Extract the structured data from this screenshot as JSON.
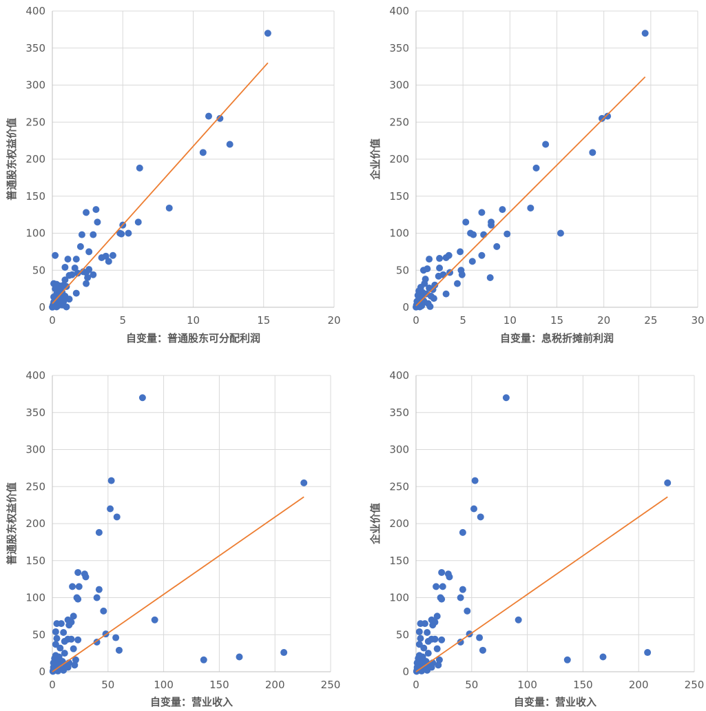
{
  "colors": {
    "points": "#4472C4",
    "trendline": "#ED7D31",
    "grid": "#D9D9D9",
    "text": "#595959"
  },
  "chart_data": [
    {
      "type": "scatter",
      "xlabel": "自变量：普通股东可分配利润",
      "ylabel": "普通股东权益价值",
      "xlim": [
        0,
        20
      ],
      "ylim": [
        0,
        400
      ],
      "xticks": [
        0,
        5,
        10,
        15,
        20
      ],
      "yticks": [
        0,
        50,
        100,
        150,
        200,
        250,
        300,
        350,
        400
      ],
      "grid": true,
      "trendline": {
        "x": [
          0,
          15.3
        ],
        "y": [
          5,
          330
        ]
      },
      "points": [
        [
          15.3,
          370
        ],
        [
          11.1,
          258
        ],
        [
          11.9,
          255
        ],
        [
          12.6,
          220
        ],
        [
          10.7,
          209
        ],
        [
          6.2,
          188
        ],
        [
          8.3,
          134
        ],
        [
          3.1,
          132
        ],
        [
          2.4,
          128
        ],
        [
          3.2,
          115
        ],
        [
          6.1,
          115
        ],
        [
          5.0,
          111
        ],
        [
          4.8,
          100
        ],
        [
          5.4,
          100
        ],
        [
          4.9,
          99
        ],
        [
          2.9,
          98
        ],
        [
          2.1,
          98
        ],
        [
          2.0,
          82
        ],
        [
          2.6,
          75
        ],
        [
          0.2,
          70
        ],
        [
          4.3,
          70
        ],
        [
          3.5,
          67
        ],
        [
          3.8,
          69
        ],
        [
          4.0,
          62
        ],
        [
          1.1,
          65
        ],
        [
          1.7,
          65
        ],
        [
          0.9,
          54
        ],
        [
          1.6,
          53
        ],
        [
          2.6,
          51
        ],
        [
          2.2,
          48
        ],
        [
          2.4,
          47
        ],
        [
          1.8,
          46
        ],
        [
          1.4,
          44
        ],
        [
          1.2,
          43
        ],
        [
          2.9,
          44
        ],
        [
          2.5,
          40
        ],
        [
          2.4,
          32
        ],
        [
          0.9,
          37
        ],
        [
          0.8,
          30
        ],
        [
          1.0,
          28
        ],
        [
          0.1,
          32
        ],
        [
          0.3,
          31
        ],
        [
          0.5,
          29
        ],
        [
          0.6,
          26
        ],
        [
          0.2,
          25
        ],
        [
          0.4,
          22
        ],
        [
          0.7,
          20
        ],
        [
          1.7,
          19
        ],
        [
          0.3,
          18
        ],
        [
          0.6,
          16
        ],
        [
          0.9,
          15
        ],
        [
          0.1,
          14
        ],
        [
          0.5,
          12
        ],
        [
          1.2,
          11
        ],
        [
          0.2,
          10
        ],
        [
          0.4,
          9
        ],
        [
          0.8,
          8
        ],
        [
          0.1,
          7
        ],
        [
          0.3,
          6
        ],
        [
          0.6,
          5
        ],
        [
          0.2,
          4
        ],
        [
          0.05,
          3
        ],
        [
          0.4,
          2
        ],
        [
          0.1,
          1
        ],
        [
          0.3,
          0.5
        ],
        [
          0.0,
          0.2
        ],
        [
          1.0,
          0.5
        ],
        [
          0.7,
          3
        ],
        [
          0.5,
          7
        ]
      ]
    },
    {
      "type": "scatter",
      "xlabel": "自变量：息税折摊前利润",
      "ylabel": "企业价值",
      "xlim": [
        0,
        30
      ],
      "ylim": [
        0,
        400
      ],
      "xticks": [
        0,
        5,
        10,
        15,
        20,
        25,
        30
      ],
      "yticks": [
        0,
        50,
        100,
        150,
        200,
        250,
        300,
        350,
        400
      ],
      "grid": true,
      "trendline": {
        "x": [
          0,
          24.4
        ],
        "y": [
          2,
          311
        ]
      },
      "points": [
        [
          24.4,
          370
        ],
        [
          20.4,
          258
        ],
        [
          19.8,
          255
        ],
        [
          13.8,
          220
        ],
        [
          18.8,
          209
        ],
        [
          12.8,
          188
        ],
        [
          12.2,
          134
        ],
        [
          9.2,
          132
        ],
        [
          7.0,
          128
        ],
        [
          5.3,
          115
        ],
        [
          8.0,
          115
        ],
        [
          8.0,
          111
        ],
        [
          5.8,
          100
        ],
        [
          15.4,
          100
        ],
        [
          9.7,
          99
        ],
        [
          6.1,
          98
        ],
        [
          7.2,
          98
        ],
        [
          8.6,
          82
        ],
        [
          4.7,
          75
        ],
        [
          3.5,
          70
        ],
        [
          7.0,
          70
        ],
        [
          3.2,
          67
        ],
        [
          1.4,
          65
        ],
        [
          2.5,
          66
        ],
        [
          6.0,
          62
        ],
        [
          0.8,
          50
        ],
        [
          1.2,
          52
        ],
        [
          2.5,
          53
        ],
        [
          4.8,
          50
        ],
        [
          3.6,
          47
        ],
        [
          4.9,
          44
        ],
        [
          2.9,
          44
        ],
        [
          2.4,
          42
        ],
        [
          7.9,
          40
        ],
        [
          1.0,
          38
        ],
        [
          0.9,
          32
        ],
        [
          4.4,
          32
        ],
        [
          2.0,
          30
        ],
        [
          0.5,
          27
        ],
        [
          1.4,
          26
        ],
        [
          1.8,
          24
        ],
        [
          0.3,
          22
        ],
        [
          0.7,
          20
        ],
        [
          1.1,
          18
        ],
        [
          3.2,
          18
        ],
        [
          0.2,
          16
        ],
        [
          0.6,
          14
        ],
        [
          1.9,
          12
        ],
        [
          0.3,
          10
        ],
        [
          0.8,
          9
        ],
        [
          0.1,
          8
        ],
        [
          0.5,
          6
        ],
        [
          1.3,
          5
        ],
        [
          0.2,
          4
        ],
        [
          0.05,
          3
        ],
        [
          0.6,
          2
        ],
        [
          0.2,
          1
        ],
        [
          1.5,
          1
        ],
        [
          0.0,
          0.3
        ],
        [
          0.4,
          0.5
        ],
        [
          0.9,
          7
        ],
        [
          1.6,
          15
        ]
      ]
    },
    {
      "type": "scatter",
      "xlabel": "自变量：营业收入",
      "ylabel": "普通股东权益价值",
      "xlim": [
        0,
        250
      ],
      "ylim": [
        0,
        400
      ],
      "xticks": [
        0,
        50,
        100,
        150,
        200,
        250
      ],
      "yticks": [
        0,
        50,
        100,
        150,
        200,
        250,
        300,
        350,
        400
      ],
      "grid": true,
      "trendline": {
        "x": [
          0,
          226
        ],
        "y": [
          0,
          236
        ]
      },
      "points": [
        [
          81,
          370
        ],
        [
          53,
          258
        ],
        [
          226,
          255
        ],
        [
          52,
          220
        ],
        [
          58,
          209
        ],
        [
          42,
          188
        ],
        [
          23,
          134
        ],
        [
          29,
          132
        ],
        [
          30,
          128
        ],
        [
          18,
          115
        ],
        [
          24,
          115
        ],
        [
          42,
          111
        ],
        [
          22,
          100
        ],
        [
          40,
          100
        ],
        [
          23,
          98
        ],
        [
          46,
          82
        ],
        [
          19,
          75
        ],
        [
          92,
          70
        ],
        [
          14,
          70
        ],
        [
          17,
          67
        ],
        [
          15,
          63
        ],
        [
          8,
          65
        ],
        [
          4,
          65
        ],
        [
          3,
          54
        ],
        [
          10,
          53
        ],
        [
          48,
          51
        ],
        [
          57,
          46
        ],
        [
          4,
          45
        ],
        [
          14,
          44
        ],
        [
          17,
          44
        ],
        [
          23,
          43
        ],
        [
          40,
          40
        ],
        [
          11,
          41
        ],
        [
          3,
          37
        ],
        [
          7,
          32
        ],
        [
          19,
          31
        ],
        [
          60,
          29
        ],
        [
          208,
          26
        ],
        [
          11,
          25
        ],
        [
          3,
          22
        ],
        [
          6,
          20
        ],
        [
          168,
          20
        ],
        [
          2,
          18
        ],
        [
          5,
          16
        ],
        [
          21,
          16
        ],
        [
          136,
          16
        ],
        [
          9,
          14
        ],
        [
          1,
          12
        ],
        [
          4,
          11
        ],
        [
          12,
          10
        ],
        [
          20,
          9
        ],
        [
          2,
          8
        ],
        [
          6,
          7
        ],
        [
          1,
          6
        ],
        [
          3,
          5
        ],
        [
          8,
          4
        ],
        [
          1,
          3
        ],
        [
          2,
          2
        ],
        [
          5,
          1
        ],
        [
          0.5,
          0.5
        ],
        [
          10,
          2
        ],
        [
          14,
          6
        ],
        [
          15,
          12
        ]
      ]
    },
    {
      "type": "scatter",
      "xlabel": "自变量：营业收入",
      "ylabel": "企业价值",
      "xlim": [
        0,
        250
      ],
      "ylim": [
        0,
        400
      ],
      "xticks": [
        0,
        50,
        100,
        150,
        200,
        250
      ],
      "yticks": [
        0,
        50,
        100,
        150,
        200,
        250,
        300,
        350,
        400
      ],
      "grid": true,
      "trendline": {
        "x": [
          0,
          226
        ],
        "y": [
          0,
          236
        ]
      },
      "points": [
        [
          81,
          370
        ],
        [
          53,
          258
        ],
        [
          226,
          255
        ],
        [
          52,
          220
        ],
        [
          58,
          209
        ],
        [
          42,
          188
        ],
        [
          23,
          134
        ],
        [
          29,
          132
        ],
        [
          30,
          128
        ],
        [
          18,
          115
        ],
        [
          24,
          115
        ],
        [
          42,
          111
        ],
        [
          22,
          100
        ],
        [
          40,
          100
        ],
        [
          23,
          98
        ],
        [
          46,
          82
        ],
        [
          19,
          75
        ],
        [
          92,
          70
        ],
        [
          14,
          70
        ],
        [
          17,
          67
        ],
        [
          15,
          63
        ],
        [
          8,
          65
        ],
        [
          4,
          65
        ],
        [
          3,
          54
        ],
        [
          10,
          53
        ],
        [
          48,
          51
        ],
        [
          57,
          46
        ],
        [
          4,
          45
        ],
        [
          14,
          44
        ],
        [
          17,
          44
        ],
        [
          23,
          43
        ],
        [
          40,
          40
        ],
        [
          11,
          41
        ],
        [
          3,
          37
        ],
        [
          7,
          32
        ],
        [
          19,
          31
        ],
        [
          60,
          29
        ],
        [
          208,
          26
        ],
        [
          11,
          25
        ],
        [
          3,
          22
        ],
        [
          6,
          20
        ],
        [
          168,
          20
        ],
        [
          2,
          18
        ],
        [
          5,
          16
        ],
        [
          21,
          16
        ],
        [
          136,
          16
        ],
        [
          9,
          14
        ],
        [
          1,
          12
        ],
        [
          4,
          11
        ],
        [
          12,
          10
        ],
        [
          20,
          9
        ],
        [
          2,
          8
        ],
        [
          6,
          7
        ],
        [
          1,
          6
        ],
        [
          3,
          5
        ],
        [
          8,
          4
        ],
        [
          1,
          3
        ],
        [
          2,
          2
        ],
        [
          5,
          1
        ],
        [
          0.5,
          0.5
        ],
        [
          10,
          2
        ],
        [
          14,
          6
        ],
        [
          15,
          12
        ]
      ]
    }
  ]
}
